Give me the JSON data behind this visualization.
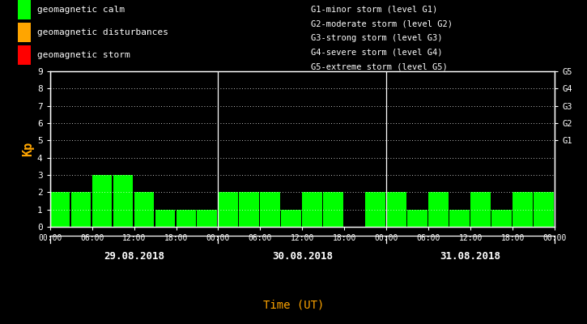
{
  "bg_color": "#000000",
  "bar_color": "#00ff00",
  "text_color": "#ffffff",
  "orange_color": "#ffa500",
  "ylabel": "Kp",
  "xlabel": "Time (UT)",
  "ylim": [
    0,
    9
  ],
  "yticks": [
    0,
    1,
    2,
    3,
    4,
    5,
    6,
    7,
    8,
    9
  ],
  "day_labels": [
    "29.08.2018",
    "30.08.2018",
    "31.08.2018"
  ],
  "kp_values": [
    [
      2,
      2,
      3,
      3,
      2,
      1,
      1,
      1
    ],
    [
      2,
      2,
      2,
      1,
      2,
      2,
      0,
      2
    ],
    [
      2,
      1,
      2,
      1,
      2,
      1,
      2,
      2
    ]
  ],
  "right_labels": [
    "G5",
    "G4",
    "G3",
    "G2",
    "G1"
  ],
  "right_y_pos": [
    9,
    8,
    7,
    6,
    5
  ],
  "legend_items": [
    {
      "label": "geomagnetic calm",
      "color": "#00ff00"
    },
    {
      "label": "geomagnetic disturbances",
      "color": "#ffa500"
    },
    {
      "label": "geomagnetic storm",
      "color": "#ff0000"
    }
  ],
  "storm_levels": [
    "G1-minor storm (level G1)",
    "G2-moderate storm (level G2)",
    "G3-strong storm (level G3)",
    "G4-severe storm (level G4)",
    "G5-extreme storm (level G5)"
  ],
  "figsize": [
    7.25,
    4.0
  ],
  "dpi": 100
}
